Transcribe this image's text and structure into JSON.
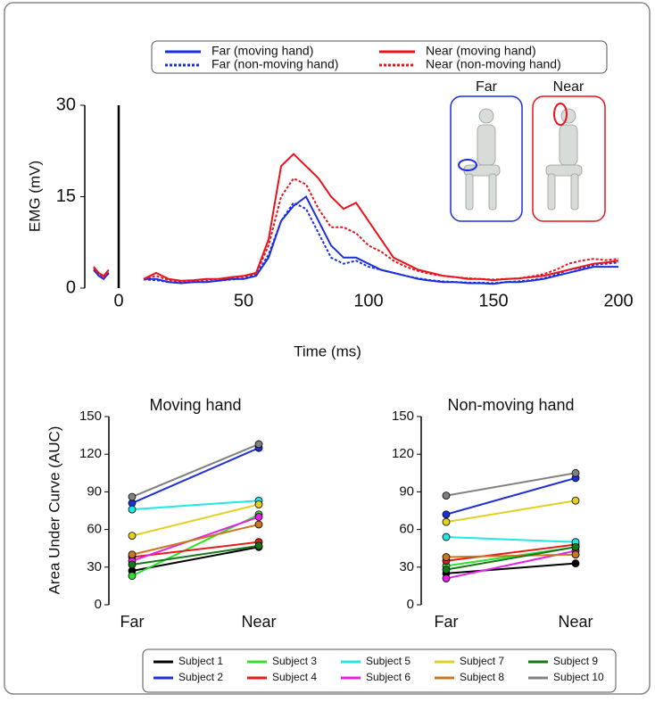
{
  "chart_data": [
    {
      "type": "line",
      "x_label": "Time (ms)",
      "y_label": "EMG (mV)",
      "x": [
        -10,
        -8,
        -6,
        -4,
        0,
        10,
        15,
        20,
        25,
        30,
        35,
        40,
        45,
        50,
        55,
        60,
        65,
        70,
        75,
        80,
        85,
        90,
        95,
        100,
        105,
        110,
        115,
        120,
        125,
        130,
        135,
        140,
        145,
        150,
        155,
        160,
        165,
        170,
        175,
        180,
        185,
        190,
        195,
        200
      ],
      "xlim": [
        -10,
        200
      ],
      "xticks": [
        0,
        50,
        100,
        150,
        200
      ],
      "ylim": [
        0,
        30
      ],
      "yticks": [
        0,
        15,
        30
      ],
      "annotations": [
        "Far",
        "Near"
      ],
      "series": [
        {
          "name": "Far (moving hand)",
          "color": "#1a2ee0",
          "style": "solid",
          "values": [
            3,
            2,
            1.5,
            2.5,
            null,
            1.5,
            1.5,
            1,
            0.8,
            1,
            1,
            1.2,
            1.5,
            1.5,
            2,
            5,
            11,
            13.5,
            15,
            11,
            7,
            5,
            5,
            4,
            3,
            2.5,
            2,
            1.5,
            1.2,
            1,
            1,
            0.8,
            0.8,
            0.7,
            1,
            1,
            1.2,
            1.5,
            2,
            2.5,
            3,
            3.5,
            3.5,
            3.5
          ]
        },
        {
          "name": "Far (non-moving hand)",
          "color": "#1a2ee0",
          "style": "dotted",
          "values": [
            3,
            2.2,
            1.6,
            2.4,
            null,
            1.4,
            1.3,
            1,
            0.9,
            1,
            1.1,
            1.2,
            1.4,
            1.6,
            2.2,
            5.5,
            11,
            14,
            13,
            9,
            5,
            4,
            4.5,
            3.5,
            3,
            2.5,
            2,
            1.6,
            1.3,
            1.1,
            1,
            0.9,
            0.9,
            0.8,
            1,
            1.1,
            1.3,
            1.6,
            2.2,
            3,
            3.3,
            3.8,
            4,
            4.2
          ]
        },
        {
          "name": "Near (moving hand)",
          "color": "#e8141c",
          "style": "solid",
          "values": [
            3.5,
            2.5,
            2,
            3,
            null,
            1.5,
            2.5,
            1.5,
            1.2,
            1.3,
            1.5,
            1.5,
            1.8,
            2,
            2.5,
            8,
            20,
            22,
            20,
            18,
            15,
            13,
            14,
            11,
            8,
            5,
            4,
            3,
            2.5,
            2,
            1.8,
            1.5,
            1.5,
            1.3,
            1.5,
            1.6,
            1.8,
            2,
            2.5,
            3,
            3.5,
            4,
            4.2,
            4.5
          ]
        },
        {
          "name": "Near (non-moving hand)",
          "color": "#e8141c",
          "style": "dotted",
          "values": [
            3.3,
            2.4,
            1.8,
            2.8,
            null,
            1.5,
            2,
            1.3,
            1.1,
            1.2,
            1.4,
            1.5,
            1.7,
            1.9,
            2.4,
            7,
            15,
            18,
            17,
            13,
            10,
            10,
            9,
            7,
            6,
            4.5,
            3.5,
            2.8,
            2.3,
            2,
            1.8,
            1.6,
            1.5,
            1.4,
            1.5,
            1.6,
            1.9,
            2.3,
            3,
            4,
            4.5,
            4.8,
            4.6,
            4.8
          ]
        }
      ]
    },
    {
      "type": "slope",
      "title": "Moving hand",
      "y_label": "Area Under Curve (AUC)",
      "categories": [
        "Far",
        "Near"
      ],
      "ylim": [
        0,
        150
      ],
      "yticks": [
        0,
        30,
        60,
        90,
        120,
        150
      ],
      "series": [
        {
          "name": "Subject 1",
          "color": "#000000",
          "values": [
            27,
            46
          ]
        },
        {
          "name": "Subject 2",
          "color": "#1f2fd8",
          "values": [
            81,
            125
          ]
        },
        {
          "name": "Subject 3",
          "color": "#2ee02e",
          "values": [
            23,
            72
          ]
        },
        {
          "name": "Subject 4",
          "color": "#e81a1a",
          "values": [
            38,
            50
          ]
        },
        {
          "name": "Subject 5",
          "color": "#22e6e6",
          "values": [
            76,
            83
          ]
        },
        {
          "name": "Subject 6",
          "color": "#e620e6",
          "values": [
            35,
            70
          ]
        },
        {
          "name": "Subject 7",
          "color": "#e0d020",
          "values": [
            55,
            80
          ]
        },
        {
          "name": "Subject 8",
          "color": "#c87820",
          "values": [
            40,
            64
          ]
        },
        {
          "name": "Subject 9",
          "color": "#157a15",
          "values": [
            32,
            47
          ]
        },
        {
          "name": "Subject 10",
          "color": "#808080",
          "values": [
            86,
            128
          ]
        }
      ]
    },
    {
      "type": "slope",
      "title": "Non-moving hand",
      "categories": [
        "Far",
        "Near"
      ],
      "ylim": [
        0,
        150
      ],
      "yticks": [
        0,
        30,
        60,
        90,
        120,
        150
      ],
      "series": [
        {
          "color": "#000000",
          "values": [
            25,
            33
          ]
        },
        {
          "color": "#1f2fd8",
          "values": [
            72,
            101
          ]
        },
        {
          "color": "#2ee02e",
          "values": [
            31,
            46
          ]
        },
        {
          "color": "#e81a1a",
          "values": [
            35,
            48
          ]
        },
        {
          "color": "#22e6e6",
          "values": [
            54,
            50
          ]
        },
        {
          "color": "#e620e6",
          "values": [
            21,
            43
          ]
        },
        {
          "color": "#e0d020",
          "values": [
            66,
            83
          ]
        },
        {
          "color": "#c87820",
          "values": [
            38,
            40
          ]
        },
        {
          "color": "#157a15",
          "values": [
            28,
            46
          ]
        },
        {
          "color": "#808080",
          "values": [
            87,
            105
          ]
        }
      ]
    }
  ]
}
